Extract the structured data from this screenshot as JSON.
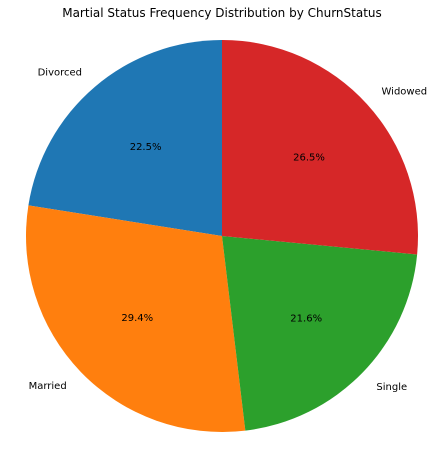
{
  "chart_data": {
    "type": "pie",
    "title": "Martial Status Frequency Distribution by ChurnStatus",
    "categories": [
      "Divorced",
      "Married",
      "Single",
      "Widowed"
    ],
    "values": [
      22.5,
      29.4,
      21.6,
      26.5
    ],
    "value_labels": [
      "22.5%",
      "29.4%",
      "21.6%",
      "26.5%"
    ],
    "colors": [
      "#1f77b4",
      "#ff7f0e",
      "#2ca02c",
      "#d62728"
    ],
    "start_angle_deg": 90,
    "direction": "counterclockwise",
    "legend": "none"
  }
}
